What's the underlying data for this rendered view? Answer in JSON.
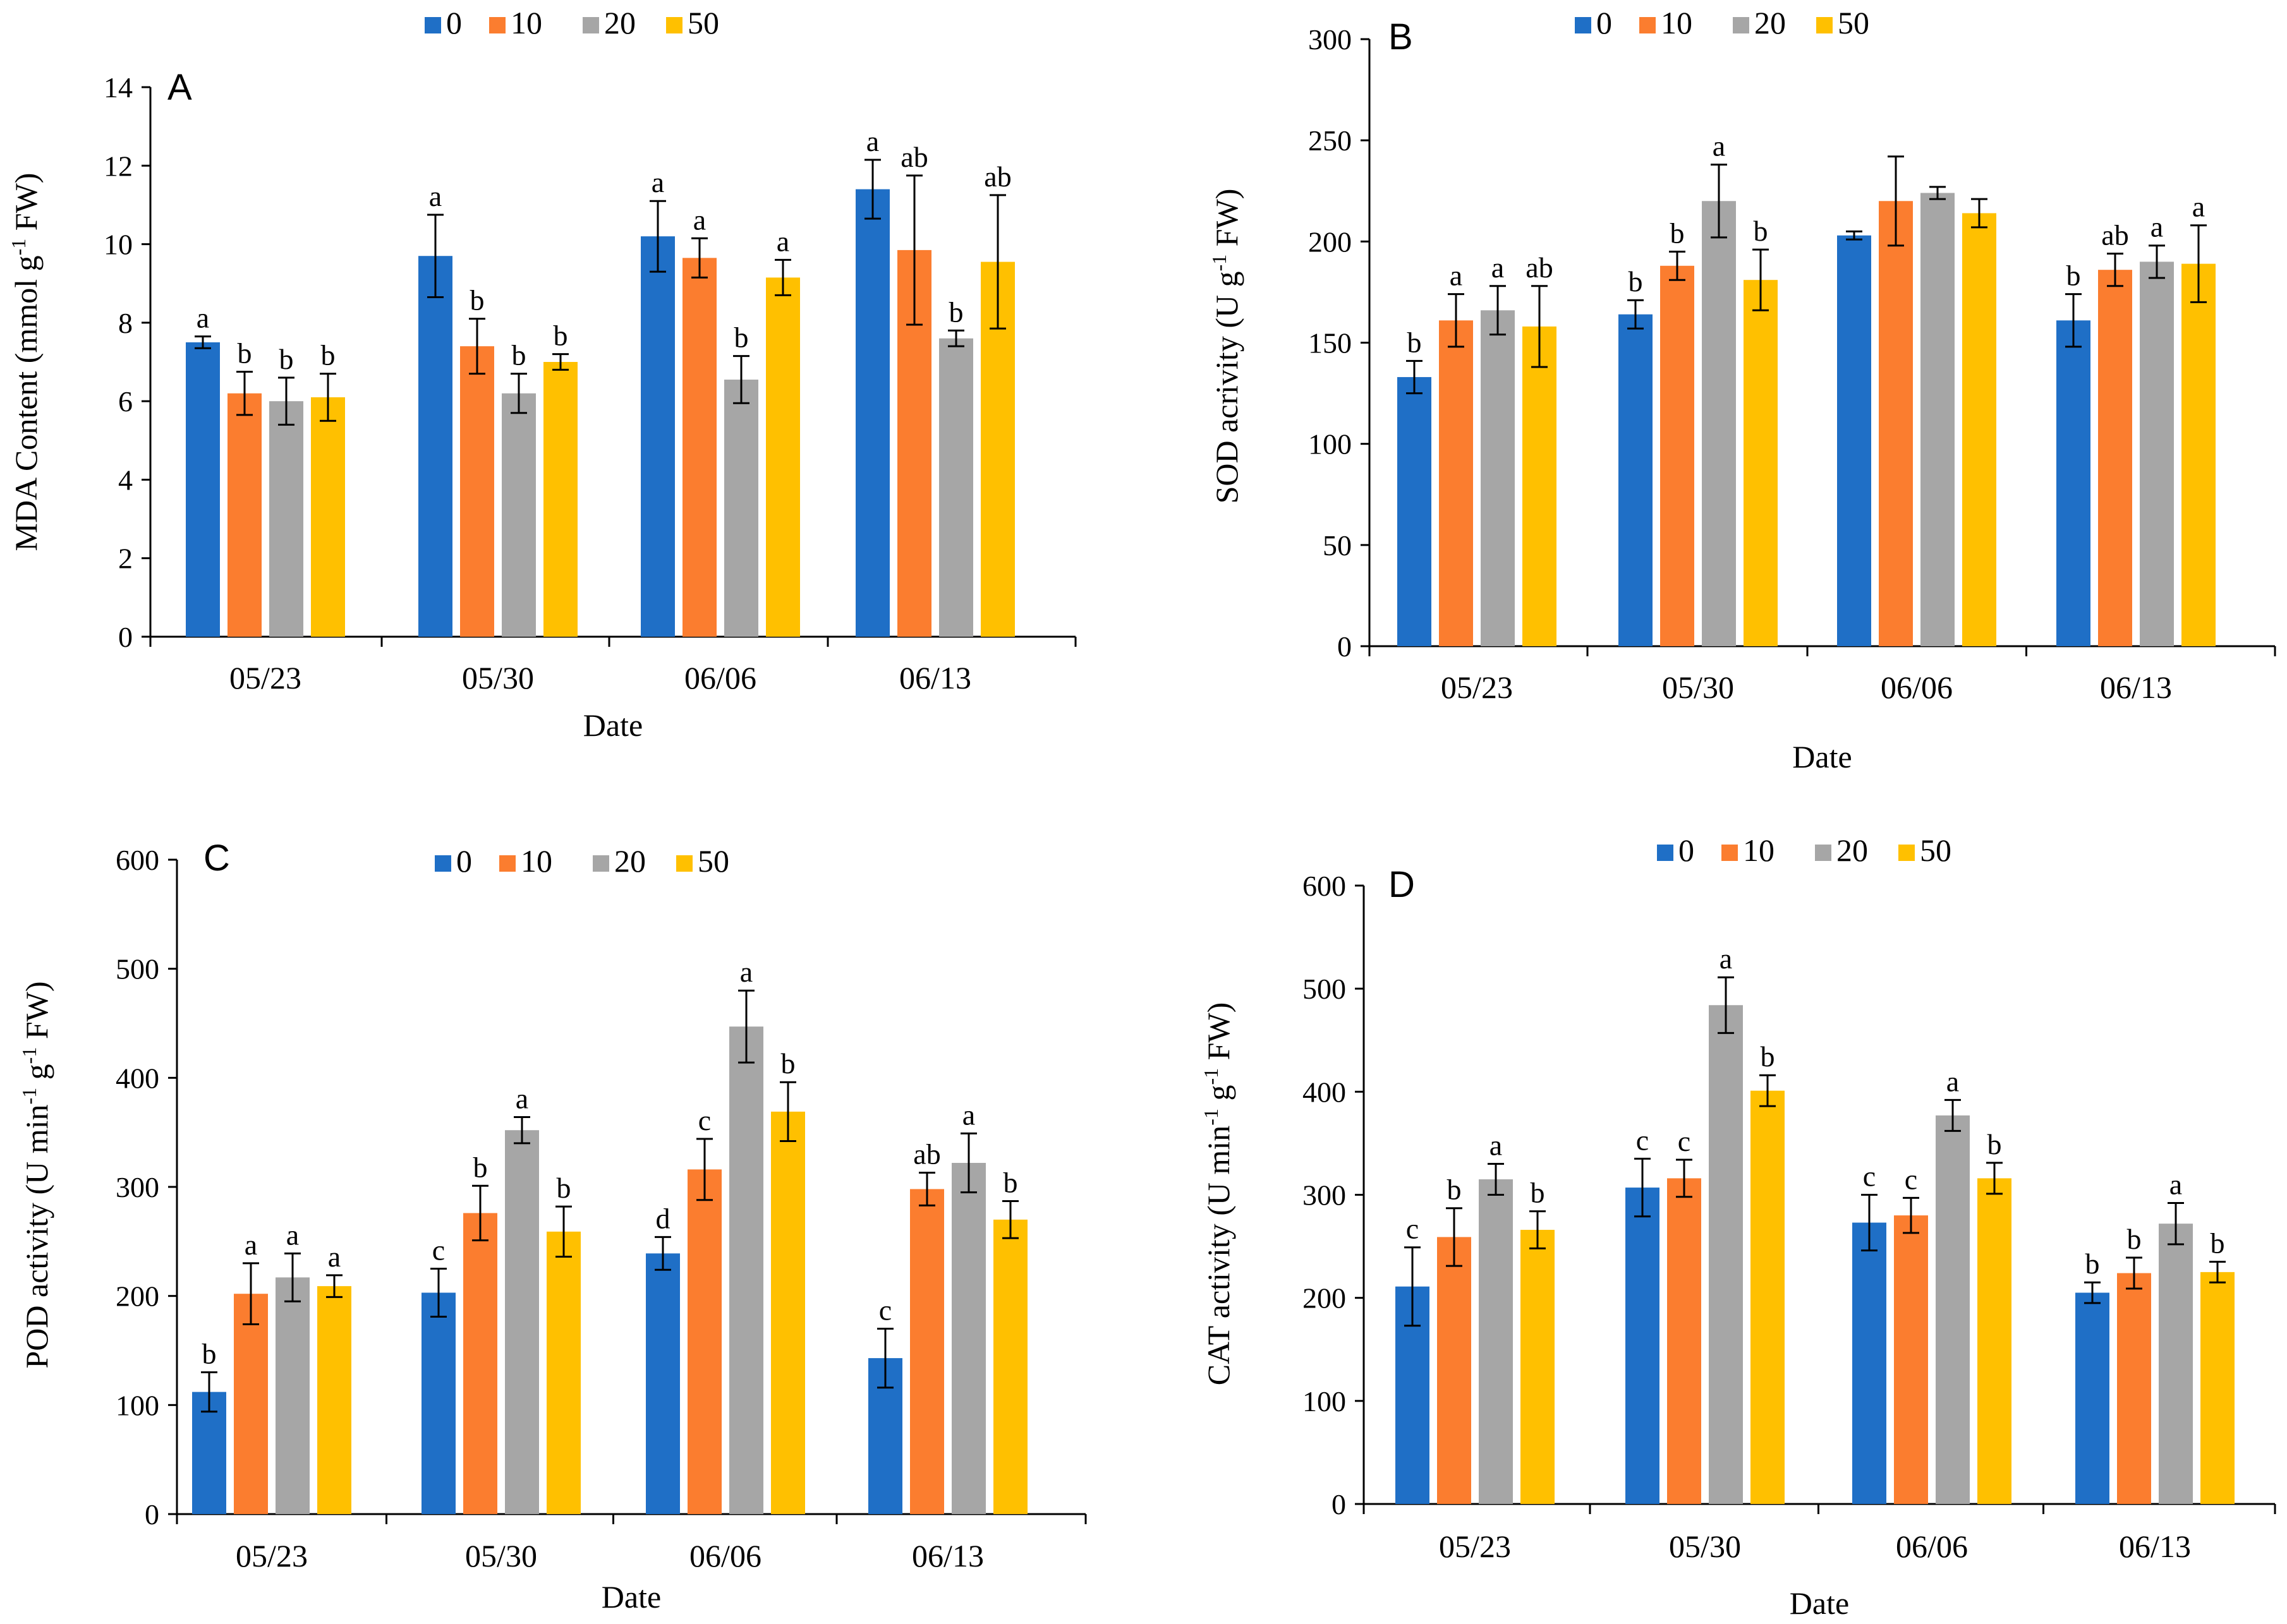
{
  "legend_series": [
    "0",
    "10",
    "20",
    "50"
  ],
  "colors": [
    "#1f6fc6",
    "#fb7d2f",
    "#a6a6a6",
    "#ffc000"
  ],
  "chart_data": [
    {
      "panel": "A",
      "type": "bar",
      "title": "",
      "xlabel": "Date",
      "ylabel": "MDA Content (mmol g-1 FW)",
      "ylabel_parts": [
        "MDA Content (mmol g",
        "-1",
        " FW)"
      ],
      "ylim": [
        0,
        14
      ],
      "yticks": [
        "0",
        "2",
        "4",
        "6",
        "8",
        "10",
        "12",
        "14"
      ],
      "categories": [
        "05/23",
        "05/30",
        "06/06",
        "06/13"
      ],
      "legend": "top",
      "series": [
        {
          "name": "0",
          "values": [
            7.5,
            9.7,
            10.2,
            11.4
          ],
          "errors": [
            0.15,
            1.05,
            0.9,
            0.75
          ],
          "letters": [
            "a",
            "a",
            "a",
            "a"
          ]
        },
        {
          "name": "10",
          "values": [
            6.2,
            7.4,
            9.65,
            9.85
          ],
          "errors": [
            0.55,
            0.7,
            0.5,
            1.9
          ],
          "letters": [
            "b",
            "b",
            "a",
            "ab"
          ]
        },
        {
          "name": "20",
          "values": [
            6.0,
            6.2,
            6.55,
            7.6
          ],
          "errors": [
            0.6,
            0.5,
            0.6,
            0.2
          ],
          "letters": [
            "b",
            "b",
            "b",
            "b"
          ]
        },
        {
          "name": "50",
          "values": [
            6.1,
            7.0,
            9.15,
            9.55
          ],
          "errors": [
            0.6,
            0.2,
            0.45,
            1.7
          ],
          "letters": [
            "b",
            "b",
            "a",
            "ab"
          ]
        }
      ]
    },
    {
      "panel": "B",
      "type": "bar",
      "title": "",
      "xlabel": "Date",
      "ylabel": "SOD acrivity (U g-1 FW)",
      "ylabel_parts": [
        "SOD acrivity (U g",
        "-1",
        " FW)"
      ],
      "ylim": [
        0,
        300
      ],
      "yticks": [
        "0",
        "50",
        "100",
        "150",
        "200",
        "250",
        "300"
      ],
      "categories": [
        "05/23",
        "05/30",
        "06/06",
        "06/13"
      ],
      "legend": "top",
      "series": [
        {
          "name": "0",
          "values": [
            133,
            164,
            203,
            161
          ],
          "errors": [
            8,
            7,
            2,
            13
          ],
          "letters": [
            "b",
            "b",
            "",
            "b"
          ]
        },
        {
          "name": "10",
          "values": [
            161,
            188,
            220,
            186
          ],
          "errors": [
            13,
            7,
            22,
            8
          ],
          "letters": [
            "a",
            "b",
            "",
            "ab"
          ]
        },
        {
          "name": "20",
          "values": [
            166,
            220,
            224,
            190
          ],
          "errors": [
            12,
            18,
            3,
            8
          ],
          "letters": [
            "a",
            "a",
            "",
            "a"
          ]
        },
        {
          "name": "50",
          "values": [
            158,
            181,
            214,
            189
          ],
          "errors": [
            20,
            15,
            7,
            19
          ],
          "letters": [
            "ab",
            "b",
            "",
            "a"
          ]
        }
      ]
    },
    {
      "panel": "C",
      "type": "bar",
      "title": "",
      "xlabel": "Date",
      "ylabel": "POD activity (U min-1 g-1 FW)",
      "ylabel_parts": [
        "POD activity (U min",
        "-1",
        " g",
        "-1",
        " FW)"
      ],
      "ylim": [
        0,
        600
      ],
      "yticks": [
        "0",
        "100",
        "200",
        "300",
        "400",
        "500",
        "600"
      ],
      "categories": [
        "05/23",
        "05/30",
        "06/06",
        "06/13"
      ],
      "legend": "top",
      "series": [
        {
          "name": "0",
          "values": [
            112,
            203,
            239,
            143
          ],
          "errors": [
            18,
            22,
            15,
            27
          ],
          "letters": [
            "b",
            "c",
            "d",
            "c"
          ]
        },
        {
          "name": "10",
          "values": [
            202,
            276,
            316,
            298
          ],
          "errors": [
            28,
            25,
            28,
            15
          ],
          "letters": [
            "a",
            "b",
            "c",
            "ab"
          ]
        },
        {
          "name": "20",
          "values": [
            217,
            352,
            447,
            322
          ],
          "errors": [
            22,
            12,
            33,
            27
          ],
          "letters": [
            "a",
            "a",
            "a",
            "a"
          ]
        },
        {
          "name": "50",
          "values": [
            209,
            259,
            369,
            270
          ],
          "errors": [
            10,
            23,
            27,
            17
          ],
          "letters": [
            "a",
            "b",
            "b",
            "b"
          ]
        }
      ]
    },
    {
      "panel": "D",
      "type": "bar",
      "title": "",
      "xlabel": "Date",
      "ylabel": "CAT activity (U min-1 g-1 FW)",
      "ylabel_parts": [
        "CAT activity (U min",
        "-1",
        " g",
        "-1",
        " FW)"
      ],
      "ylim": [
        0,
        600
      ],
      "yticks": [
        "0",
        "100",
        "200",
        "300",
        "400",
        "500",
        "600"
      ],
      "categories": [
        "05/23",
        "05/30",
        "06/06",
        "06/13"
      ],
      "legend": "top",
      "series": [
        {
          "name": "0",
          "values": [
            211,
            307,
            273,
            205
          ],
          "errors": [
            38,
            28,
            27,
            10
          ],
          "letters": [
            "c",
            "c",
            "c",
            "b"
          ]
        },
        {
          "name": "10",
          "values": [
            259,
            316,
            280,
            224
          ],
          "errors": [
            28,
            18,
            17,
            15
          ],
          "letters": [
            "b",
            "c",
            "c",
            "b"
          ]
        },
        {
          "name": "20",
          "values": [
            315,
            484,
            377,
            272
          ],
          "errors": [
            15,
            27,
            15,
            20
          ],
          "letters": [
            "a",
            "a",
            "a",
            "a"
          ]
        },
        {
          "name": "50",
          "values": [
            266,
            401,
            316,
            225
          ],
          "errors": [
            18,
            15,
            15,
            10
          ],
          "letters": [
            "b",
            "b",
            "b",
            "b"
          ]
        }
      ]
    }
  ]
}
